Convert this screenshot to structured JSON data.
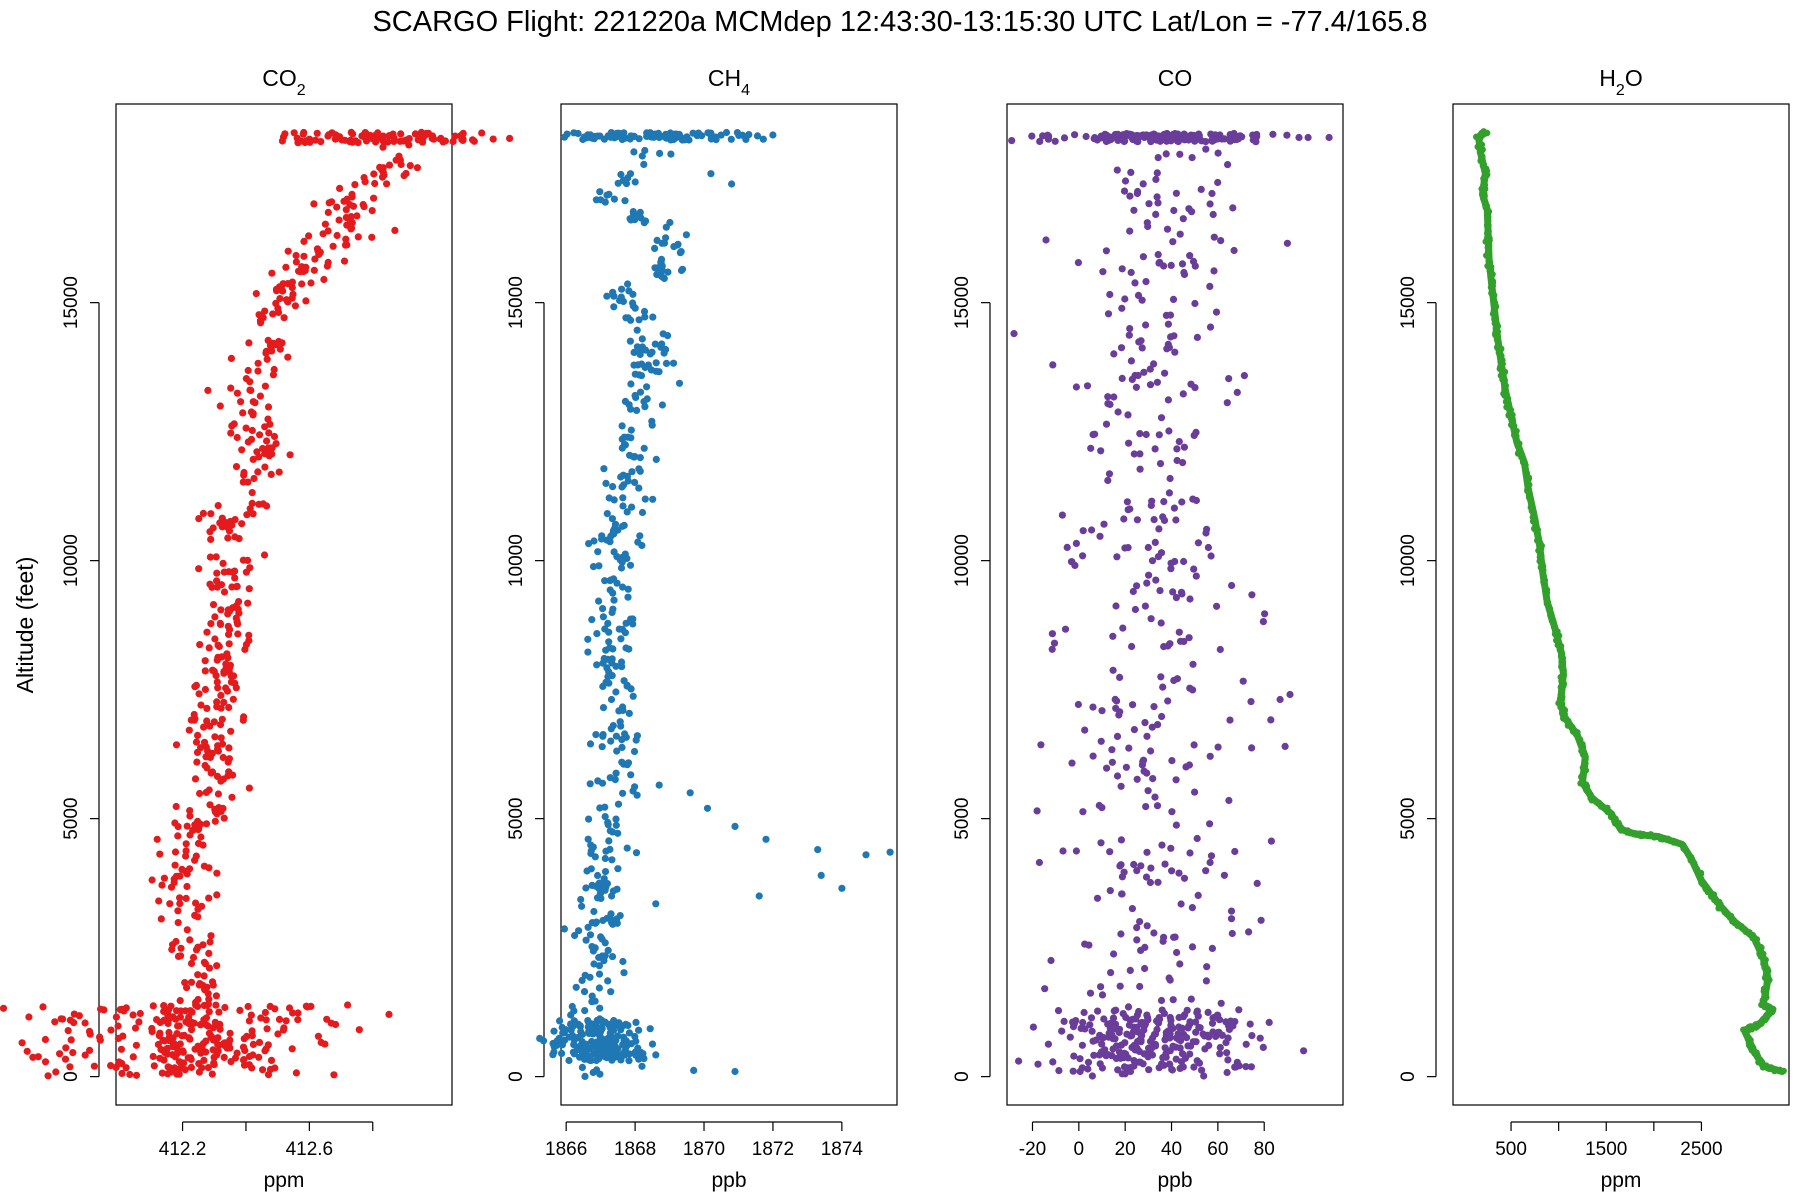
{
  "figure_title": "SCARGO Flight: 221220a  MCMdep  12:43:30-13:15:30 UTC  Lat/Lon = -77.4/165.8",
  "y_axis_label": "Altitude (feet)",
  "chart_data": [
    {
      "type": "scatter",
      "title": "CO2",
      "title_main": "CO",
      "title_sub": "2",
      "xlabel": "ppm",
      "ylabel": "Altitude (feet)",
      "xlim": [
        411.99,
        413.05
      ],
      "ylim": [
        -550,
        18850
      ],
      "xticks": [
        412.2,
        412.4,
        412.6,
        412.8
      ],
      "xtick_labels": [
        "412.2",
        "",
        "412.6",
        ""
      ],
      "yticks": [
        0,
        5000,
        10000,
        15000
      ],
      "ytick_labels": [
        "0",
        "5000",
        "10000",
        "15000"
      ],
      "color": "#e41a1c",
      "profile": [
        [
          100,
          412.17
        ],
        [
          400,
          412.18
        ],
        [
          800,
          412.19
        ],
        [
          1200,
          412.22
        ],
        [
          1800,
          412.26
        ],
        [
          2500,
          412.23
        ],
        [
          3200,
          412.21
        ],
        [
          4000,
          412.22
        ],
        [
          4600,
          412.24
        ],
        [
          5200,
          412.27
        ],
        [
          5800,
          412.31
        ],
        [
          6500,
          412.28
        ],
        [
          7200,
          412.3
        ],
        [
          8000,
          412.32
        ],
        [
          9000,
          412.35
        ],
        [
          10000,
          412.34
        ],
        [
          10800,
          412.35
        ],
        [
          11500,
          412.42
        ],
        [
          12200,
          412.45
        ],
        [
          13000,
          412.41
        ],
        [
          13800,
          412.44
        ],
        [
          14500,
          412.47
        ],
        [
          15200,
          412.52
        ],
        [
          15800,
          412.6
        ],
        [
          16300,
          412.7
        ],
        [
          17000,
          412.72
        ],
        [
          17600,
          412.88
        ],
        [
          18200,
          412.84
        ]
      ],
      "spread": 0.045,
      "n_points": 520,
      "dense_bands": [
        [
          0,
          1400,
          220,
          0.25
        ],
        [
          18100,
          18300,
          90,
          0.18
        ]
      ],
      "outliers": [
        [
          13300,
          412.28
        ],
        [
          3300,
          412.26
        ],
        [
          500,
          412.46
        ],
        [
          4600,
          412.12
        ],
        [
          16400,
          412.87
        ]
      ]
    },
    {
      "type": "scatter",
      "title": "CH4",
      "title_main": "CH",
      "title_sub": "4",
      "xlabel": "ppb",
      "ylabel": "Altitude (feet)",
      "xlim": [
        1865.85,
        1875.6
      ],
      "ylim": [
        -550,
        18850
      ],
      "xticks": [
        1866,
        1868,
        1870,
        1872,
        1874
      ],
      "xtick_labels": [
        "1866",
        "1868",
        "1870",
        "1872",
        "1874"
      ],
      "yticks": [
        0,
        5000,
        10000,
        15000
      ],
      "ytick_labels": [
        "0",
        "5000",
        "10000",
        "15000"
      ],
      "color": "#1f78b4",
      "profile": [
        [
          0,
          1866.9
        ],
        [
          600,
          1867.0
        ],
        [
          1500,
          1867.0
        ],
        [
          2300,
          1867.0
        ],
        [
          3000,
          1866.9
        ],
        [
          5800,
          1867.5
        ],
        [
          6500,
          1867.3
        ],
        [
          7300,
          1867.6
        ],
        [
          8200,
          1867.3
        ],
        [
          9000,
          1867.4
        ],
        [
          10000,
          1867.4
        ],
        [
          11000,
          1867.7
        ],
        [
          12000,
          1867.9
        ],
        [
          13000,
          1868.0
        ],
        [
          13800,
          1868.4
        ],
        [
          14500,
          1868.3
        ],
        [
          15100,
          1867.3
        ],
        [
          15700,
          1869.0
        ],
        [
          16400,
          1869.1
        ],
        [
          16900,
          1867.2
        ],
        [
          17600,
          1867.8
        ],
        [
          18100,
          1868.6
        ]
      ],
      "spread": 0.35,
      "n_points": 430,
      "dense_bands": [
        [
          300,
          1100,
          160,
          0.7
        ],
        [
          18150,
          18300,
          90,
          1.6
        ]
      ],
      "outliers": [
        [
          5650,
          1868.7
        ],
        [
          5500,
          1869.6
        ],
        [
          5200,
          1870.1
        ],
        [
          4850,
          1870.9
        ],
        [
          4600,
          1871.8
        ],
        [
          4400,
          1873.3
        ],
        [
          4300,
          1874.7
        ],
        [
          4350,
          1875.4
        ],
        [
          3900,
          1873.4
        ],
        [
          3650,
          1874.0
        ],
        [
          3500,
          1871.6
        ],
        [
          3350,
          1868.6
        ],
        [
          200,
          1868.2
        ],
        [
          120,
          1869.7
        ],
        [
          100,
          1870.9
        ],
        [
          18250,
          1872.0
        ],
        [
          17300,
          1870.8
        ],
        [
          17500,
          1870.2
        ]
      ]
    },
    {
      "type": "scatter",
      "title": "CO",
      "title_main": "CO",
      "title_sub": "",
      "xlabel": "ppb",
      "ylabel": "Altitude (feet)",
      "xlim": [
        -31,
        114
      ],
      "ylim": [
        -550,
        18850
      ],
      "xticks": [
        -20,
        0,
        20,
        40,
        60,
        80
      ],
      "xtick_labels": [
        "-20",
        "0",
        "20",
        "40",
        "60",
        "80"
      ],
      "yticks": [
        0,
        5000,
        10000,
        15000
      ],
      "ytick_labels": [
        "0",
        "5000",
        "10000",
        "15000"
      ],
      "color": "#6a3d9a",
      "profile": [
        [
          0,
          34
        ],
        [
          18300,
          34
        ]
      ],
      "spread": 20,
      "n_points": 420,
      "dense_bands": [
        [
          100,
          1300,
          230,
          22
        ],
        [
          18120,
          18280,
          150,
          24
        ]
      ],
      "outliers": [
        [
          14400,
          -28
        ],
        [
          5150,
          -18
        ],
        [
          4150,
          -17
        ],
        [
          2250,
          -12
        ],
        [
          6400,
          89
        ],
        [
          16150,
          90
        ],
        [
          18200,
          108
        ],
        [
          18200,
          95
        ],
        [
          500,
          97
        ],
        [
          300,
          -26
        ]
      ]
    },
    {
      "type": "line",
      "title": "H2O",
      "title_main": "H",
      "title_sub": "2",
      "title_suffix": "O",
      "xlabel": "ppm",
      "ylabel": "Altitude (feet)",
      "xlim": [
        -110,
        3420
      ],
      "ylim": [
        -550,
        18850
      ],
      "xticks": [
        500,
        1000,
        1500,
        2000,
        2500
      ],
      "xtick_labels": [
        "500",
        "",
        "1500",
        "",
        "2500"
      ],
      "yticks": [
        0,
        5000,
        10000,
        15000
      ],
      "ytick_labels": [
        "0",
        "5000",
        "10000",
        "15000"
      ],
      "color": "#33a02c",
      "series": [
        [
          3350,
          100
        ],
        [
          3150,
          200
        ],
        [
          3050,
          500
        ],
        [
          2950,
          900
        ],
        [
          3100,
          1000
        ],
        [
          3250,
          1300
        ],
        [
          3150,
          1400
        ],
        [
          3200,
          1900
        ],
        [
          3150,
          2300
        ],
        [
          3050,
          2700
        ],
        [
          2850,
          3000
        ],
        [
          2700,
          3300
        ],
        [
          2500,
          3800
        ],
        [
          2400,
          4200
        ],
        [
          2300,
          4500
        ],
        [
          2050,
          4650
        ],
        [
          1800,
          4700
        ],
        [
          1650,
          4800
        ],
        [
          1550,
          5100
        ],
        [
          1350,
          5400
        ],
        [
          1250,
          5700
        ],
        [
          1280,
          6200
        ],
        [
          1200,
          6600
        ],
        [
          1050,
          7000
        ],
        [
          1020,
          7300
        ],
        [
          1050,
          7800
        ],
        [
          1030,
          8200
        ],
        [
          960,
          8700
        ],
        [
          880,
          9200
        ],
        [
          830,
          9800
        ],
        [
          800,
          10300
        ],
        [
          750,
          10800
        ],
        [
          680,
          11400
        ],
        [
          640,
          11900
        ],
        [
          560,
          12300
        ],
        [
          500,
          12800
        ],
        [
          440,
          13300
        ],
        [
          400,
          13800
        ],
        [
          360,
          14300
        ],
        [
          330,
          14800
        ],
        [
          300,
          15300
        ],
        [
          270,
          15800
        ],
        [
          260,
          16300
        ],
        [
          250,
          16800
        ],
        [
          200,
          17100
        ],
        [
          230,
          17500
        ],
        [
          180,
          17900
        ],
        [
          160,
          18200
        ],
        [
          220,
          18300
        ],
        [
          180,
          18250
        ]
      ]
    }
  ]
}
